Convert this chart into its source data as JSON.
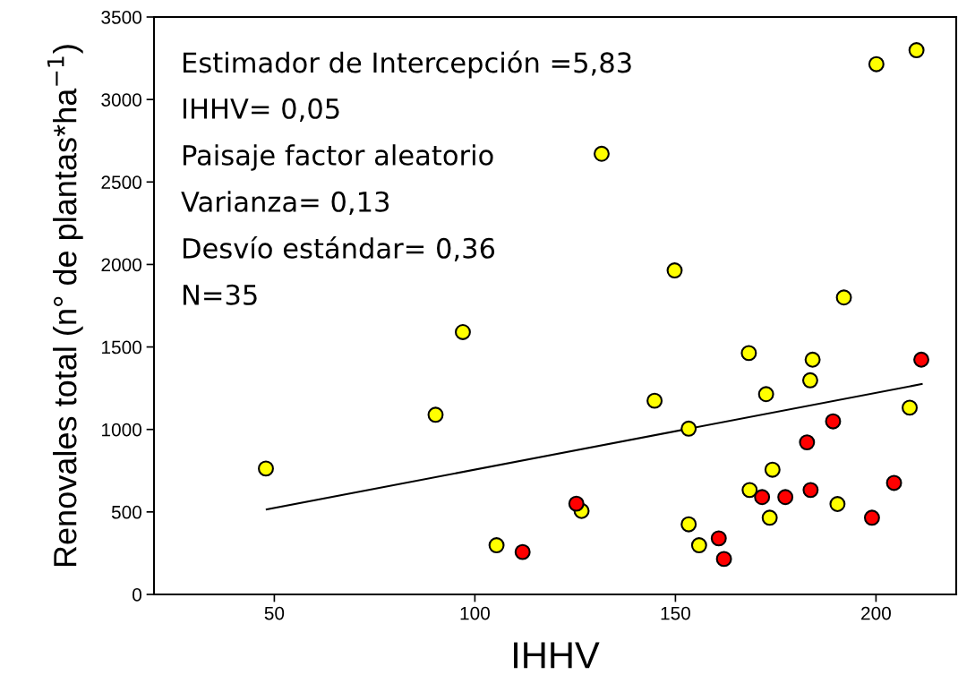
{
  "chart_data": {
    "type": "scatter",
    "xlabel": "IHHV",
    "ylabel": "Renovales total (n° de plantas*ha$^{−1}$)",
    "xlim": [
      20,
      220
    ],
    "xticks": [
      50,
      100,
      150,
      200
    ],
    "ylim": [
      0,
      3500
    ],
    "yticks": [
      0,
      500,
      1000,
      1500,
      2000,
      2500,
      3000,
      3500
    ],
    "grid": false,
    "legend": false,
    "marker": "circle",
    "annotations": [
      "Estimador de Intercepción =5,83",
      "IHHV= 0,05",
      "Paisaje factor aleatorio",
      "Varianza= 0,13",
      "Desvío estándar= 0,36",
      "N=35"
    ],
    "series": [
      {
        "color": "#ffff00",
        "x": [
          47.9,
          97,
          90.2,
          105.4,
          126.6,
          149.8,
          192,
          168.3,
          184.2,
          183.6,
          172.6,
          144.8,
          208.4,
          153.3,
          174.2,
          168.5,
          190.4,
          173.5,
          153.3,
          155.9,
          200.1,
          210.1,
          131.6
        ],
        "values": [
          763,
          1590,
          1089,
          298,
          506,
          1964,
          1800,
          1463,
          1423,
          1298,
          1214,
          1174,
          1132,
          1005,
          756,
          633,
          548,
          465,
          425,
          298,
          3214,
          3299,
          2671
        ]
      },
      {
        "color": "#ff0000",
        "x": [
          111.9,
          125.3,
          211.3,
          189.3,
          182.8,
          171.6,
          177.4,
          183.7,
          204.5,
          199,
          160.8,
          162.1
        ],
        "values": [
          257,
          550,
          1423,
          1049,
          922,
          590,
          590,
          633,
          676,
          465,
          340,
          215
        ]
      },
      {
        "type": "line",
        "color": "#000000",
        "marker": "none",
        "x": [
          48.1,
          211.4
        ],
        "values": [
          515,
          1275
        ]
      }
    ]
  }
}
